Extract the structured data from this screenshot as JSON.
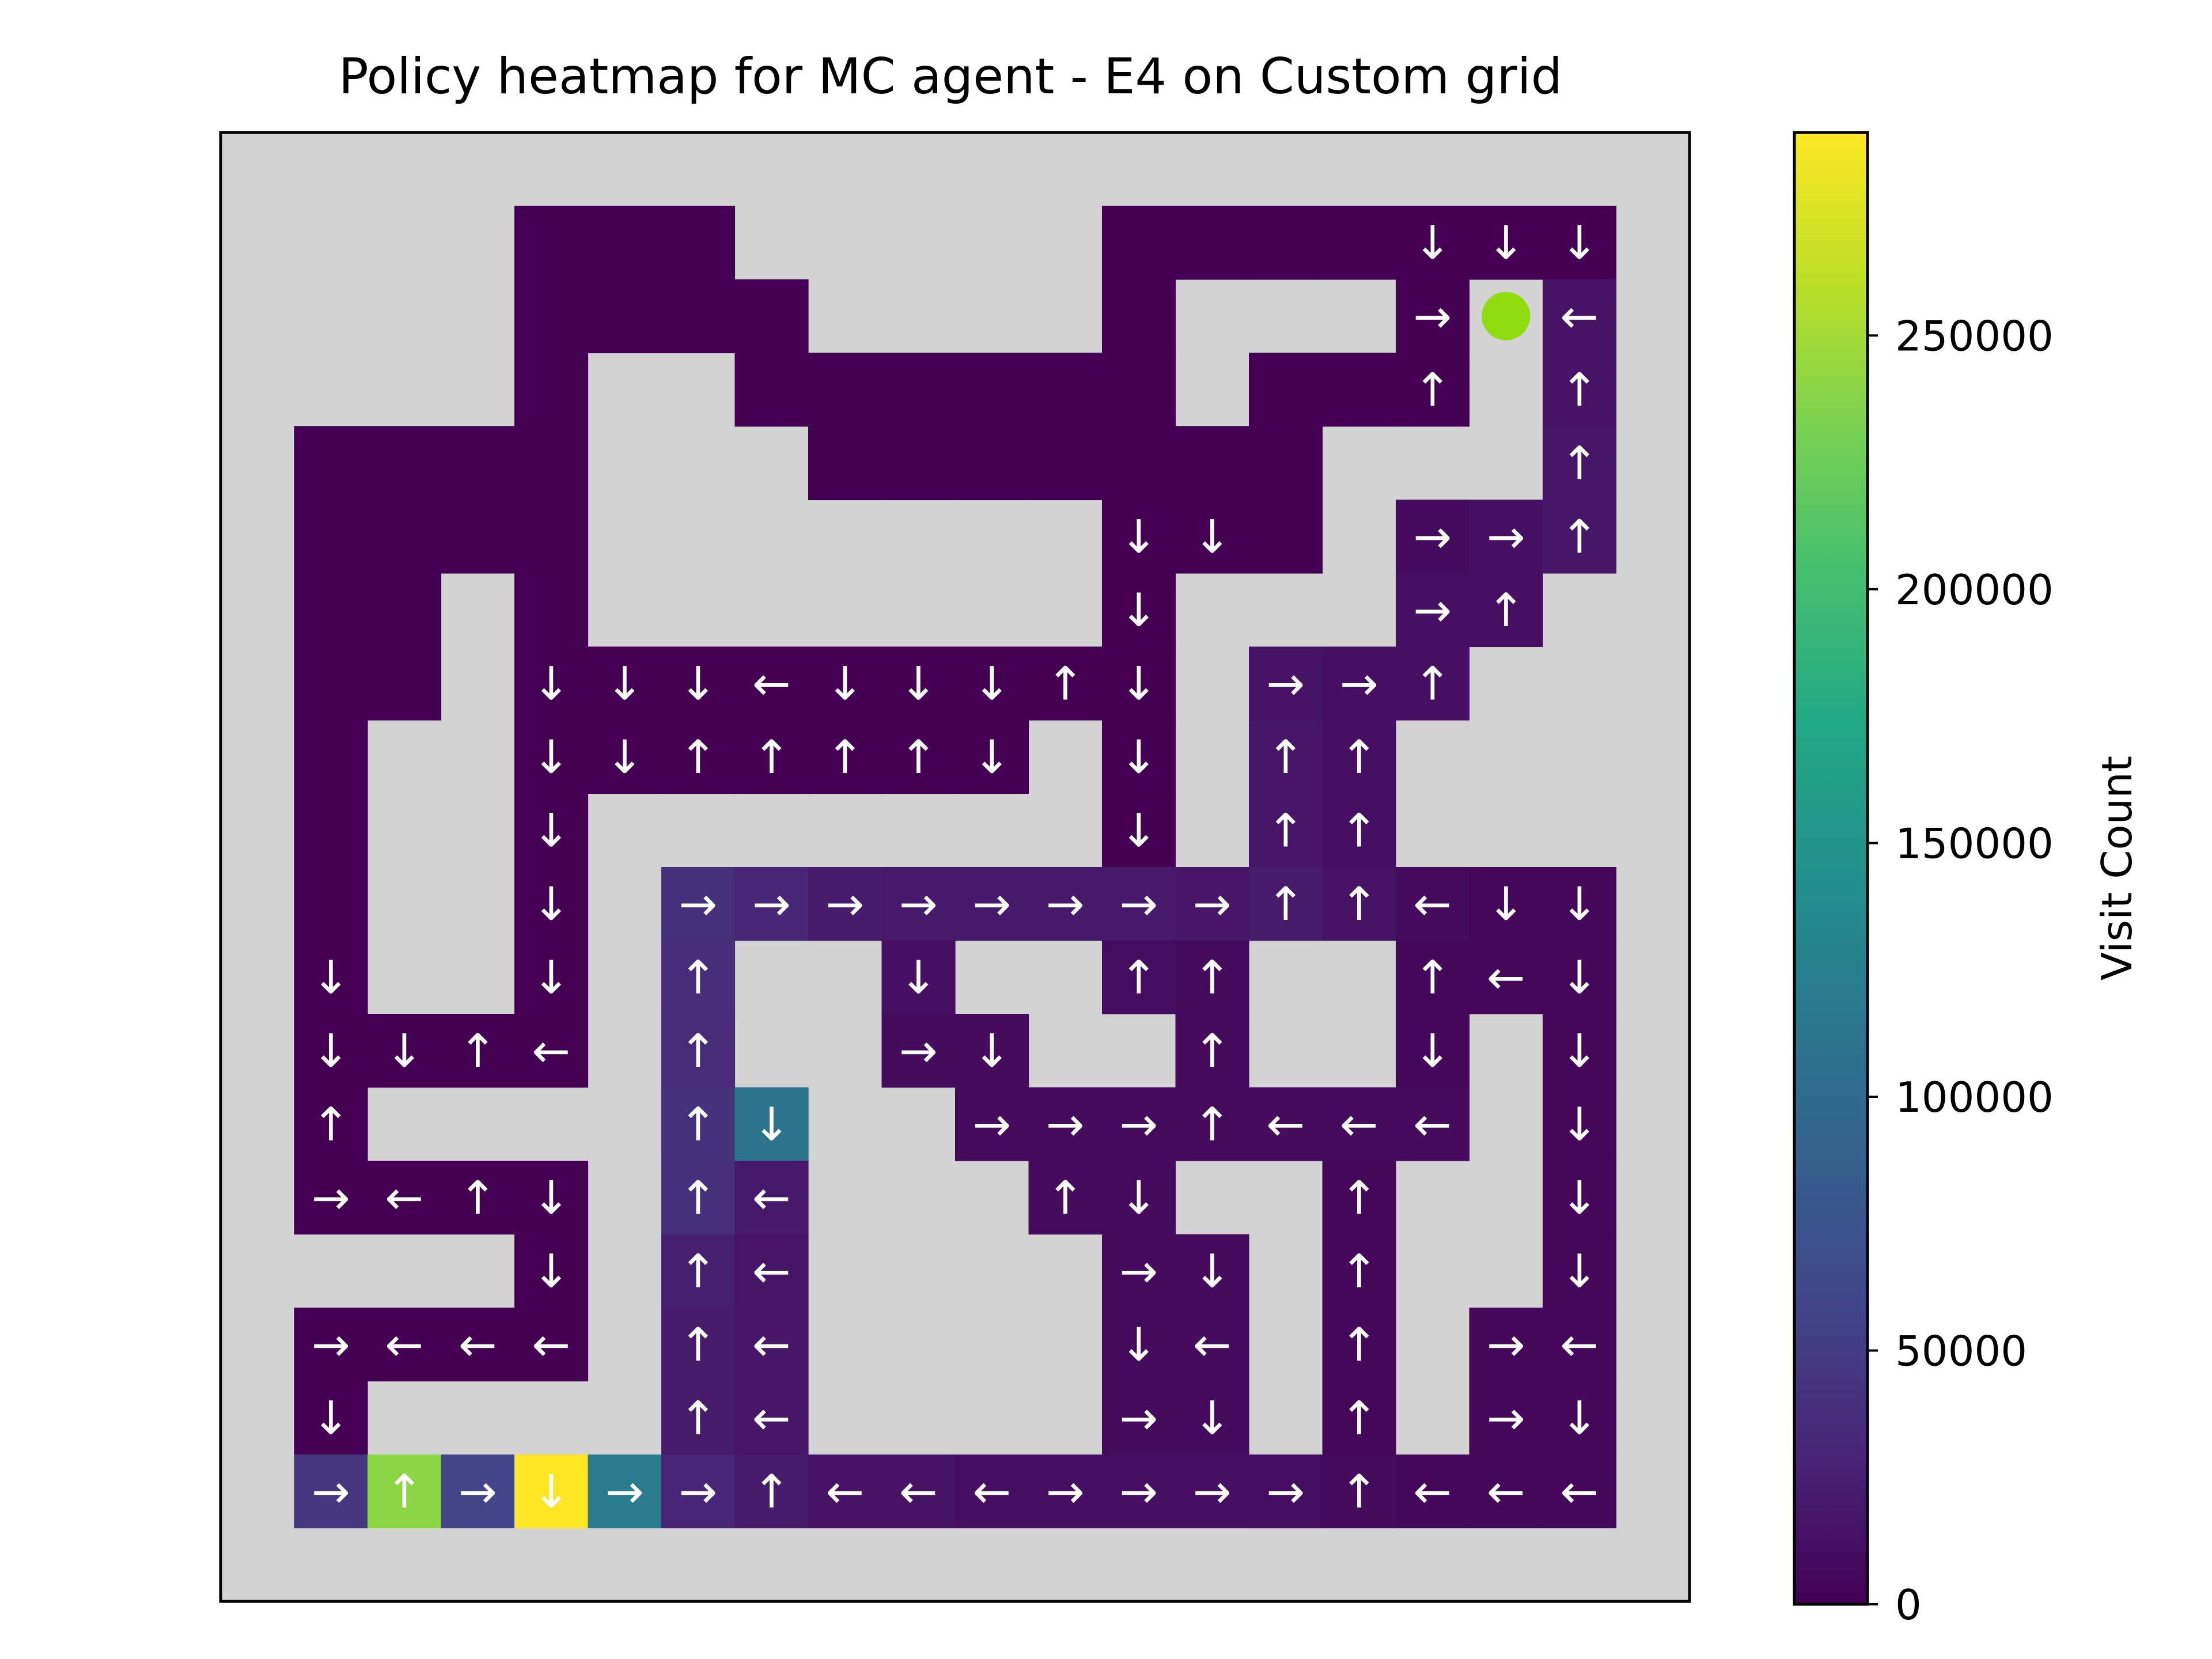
{
  "chart_data": {
    "type": "heatmap",
    "title": "Policy heatmap for MC agent - E4 on Custom grid",
    "colorbar": {
      "label": "Visit Count",
      "min": 0,
      "max": 290000,
      "ticks": [
        0,
        50000,
        100000,
        150000,
        200000,
        250000
      ],
      "tick_labels": [
        "0",
        "50000",
        "100000",
        "150000",
        "200000",
        "250000"
      ],
      "colormap": "viridis"
    },
    "grid": {
      "rows": 20,
      "cols": 20,
      "wall_color": "#d3d3d3",
      "arrow_color": "#ffffff",
      "goal_color": "#8fdc0f",
      "goal_cell": [
        2,
        17
      ]
    },
    "cells": [
      [
        1,
        4,
        0,
        ""
      ],
      [
        1,
        5,
        0,
        ""
      ],
      [
        1,
        6,
        0,
        ""
      ],
      [
        1,
        12,
        0,
        ""
      ],
      [
        1,
        13,
        0,
        ""
      ],
      [
        1,
        14,
        0,
        ""
      ],
      [
        1,
        15,
        0,
        ""
      ],
      [
        1,
        16,
        0,
        "↓"
      ],
      [
        1,
        17,
        0,
        "↓"
      ],
      [
        1,
        18,
        0,
        "↓"
      ],
      [
        2,
        4,
        0,
        ""
      ],
      [
        2,
        5,
        0,
        ""
      ],
      [
        2,
        6,
        0,
        ""
      ],
      [
        2,
        7,
        0,
        ""
      ],
      [
        2,
        12,
        0,
        ""
      ],
      [
        2,
        16,
        0,
        "→"
      ],
      [
        2,
        18,
        15000,
        "←"
      ],
      [
        3,
        4,
        0,
        ""
      ],
      [
        3,
        7,
        0,
        ""
      ],
      [
        3,
        8,
        0,
        ""
      ],
      [
        3,
        9,
        0,
        ""
      ],
      [
        3,
        10,
        0,
        ""
      ],
      [
        3,
        11,
        0,
        ""
      ],
      [
        3,
        12,
        0,
        ""
      ],
      [
        3,
        14,
        0,
        ""
      ],
      [
        3,
        15,
        0,
        ""
      ],
      [
        3,
        16,
        0,
        "↑"
      ],
      [
        3,
        18,
        15000,
        "↑"
      ],
      [
        4,
        1,
        0,
        ""
      ],
      [
        4,
        2,
        0,
        ""
      ],
      [
        4,
        3,
        0,
        ""
      ],
      [
        4,
        4,
        0,
        ""
      ],
      [
        4,
        8,
        0,
        ""
      ],
      [
        4,
        9,
        0,
        ""
      ],
      [
        4,
        10,
        0,
        ""
      ],
      [
        4,
        11,
        0,
        ""
      ],
      [
        4,
        12,
        0,
        ""
      ],
      [
        4,
        13,
        0,
        ""
      ],
      [
        4,
        14,
        0,
        ""
      ],
      [
        4,
        18,
        18000,
        "↑"
      ],
      [
        5,
        1,
        0,
        ""
      ],
      [
        5,
        2,
        0,
        ""
      ],
      [
        5,
        3,
        0,
        ""
      ],
      [
        5,
        4,
        0,
        ""
      ],
      [
        5,
        12,
        0,
        "↓"
      ],
      [
        5,
        13,
        0,
        "↓"
      ],
      [
        5,
        14,
        0,
        ""
      ],
      [
        5,
        16,
        8000,
        "→"
      ],
      [
        5,
        17,
        12000,
        "→"
      ],
      [
        5,
        18,
        18000,
        "↑"
      ],
      [
        6,
        1,
        0,
        ""
      ],
      [
        6,
        2,
        0,
        ""
      ],
      [
        6,
        4,
        0,
        ""
      ],
      [
        6,
        12,
        0,
        "↓"
      ],
      [
        6,
        16,
        12000,
        "→"
      ],
      [
        6,
        17,
        12000,
        "↑"
      ],
      [
        7,
        1,
        0,
        ""
      ],
      [
        7,
        2,
        0,
        ""
      ],
      [
        7,
        4,
        0,
        "↓"
      ],
      [
        7,
        5,
        0,
        "↓"
      ],
      [
        7,
        6,
        0,
        "↓"
      ],
      [
        7,
        7,
        0,
        "←"
      ],
      [
        7,
        8,
        0,
        "↓"
      ],
      [
        7,
        9,
        0,
        "↓"
      ],
      [
        7,
        10,
        0,
        "↓"
      ],
      [
        7,
        11,
        0,
        "↑"
      ],
      [
        7,
        12,
        0,
        "↓"
      ],
      [
        7,
        14,
        15000,
        "→"
      ],
      [
        7,
        15,
        12000,
        "→"
      ],
      [
        7,
        16,
        12000,
        "↑"
      ],
      [
        8,
        1,
        0,
        ""
      ],
      [
        8,
        4,
        0,
        "↓"
      ],
      [
        8,
        5,
        0,
        "↓"
      ],
      [
        8,
        6,
        0,
        "↑"
      ],
      [
        8,
        7,
        0,
        "↑"
      ],
      [
        8,
        8,
        0,
        "↑"
      ],
      [
        8,
        9,
        0,
        "↑"
      ],
      [
        8,
        10,
        0,
        "↓"
      ],
      [
        8,
        12,
        0,
        "↓"
      ],
      [
        8,
        14,
        18000,
        "↑"
      ],
      [
        8,
        15,
        12000,
        "↑"
      ],
      [
        9,
        1,
        0,
        ""
      ],
      [
        9,
        4,
        0,
        "↓"
      ],
      [
        9,
        12,
        0,
        "↓"
      ],
      [
        9,
        14,
        18000,
        "↑"
      ],
      [
        9,
        15,
        12000,
        "↑"
      ],
      [
        10,
        1,
        0,
        ""
      ],
      [
        10,
        4,
        0,
        "↓"
      ],
      [
        10,
        6,
        40000,
        "→"
      ],
      [
        10,
        7,
        30000,
        "→"
      ],
      [
        10,
        8,
        22000,
        "→"
      ],
      [
        10,
        9,
        20000,
        "→"
      ],
      [
        10,
        10,
        20000,
        "→"
      ],
      [
        10,
        11,
        20000,
        "→"
      ],
      [
        10,
        12,
        20000,
        "→"
      ],
      [
        10,
        13,
        18000,
        "→"
      ],
      [
        10,
        14,
        22000,
        "↑"
      ],
      [
        10,
        15,
        15000,
        "↑"
      ],
      [
        10,
        16,
        8000,
        "←"
      ],
      [
        10,
        17,
        5000,
        "↓"
      ],
      [
        10,
        18,
        5000,
        "↓"
      ],
      [
        11,
        1,
        0,
        "↓"
      ],
      [
        11,
        4,
        0,
        "↓"
      ],
      [
        11,
        6,
        38000,
        "↑"
      ],
      [
        11,
        9,
        12000,
        "↓"
      ],
      [
        11,
        12,
        10000,
        "↑"
      ],
      [
        11,
        13,
        8000,
        "↑"
      ],
      [
        11,
        16,
        5000,
        "↑"
      ],
      [
        11,
        17,
        5000,
        "←"
      ],
      [
        11,
        18,
        5000,
        "↓"
      ],
      [
        12,
        1,
        0,
        "↓"
      ],
      [
        12,
        2,
        0,
        "↓"
      ],
      [
        12,
        3,
        0,
        "↑"
      ],
      [
        12,
        4,
        0,
        "←"
      ],
      [
        12,
        6,
        35000,
        "↑"
      ],
      [
        12,
        9,
        8000,
        "→"
      ],
      [
        12,
        10,
        8000,
        "↓"
      ],
      [
        12,
        13,
        8000,
        "↑"
      ],
      [
        12,
        16,
        5000,
        "↓"
      ],
      [
        12,
        18,
        5000,
        "↓"
      ],
      [
        13,
        1,
        0,
        "↑"
      ],
      [
        13,
        6,
        42000,
        "↑"
      ],
      [
        13,
        7,
        110000,
        "↓"
      ],
      [
        13,
        10,
        8000,
        "→"
      ],
      [
        13,
        11,
        8000,
        "→"
      ],
      [
        13,
        12,
        8000,
        "→"
      ],
      [
        13,
        13,
        8000,
        "↑"
      ],
      [
        13,
        14,
        8000,
        "←"
      ],
      [
        13,
        15,
        8000,
        "←"
      ],
      [
        13,
        16,
        8000,
        "←"
      ],
      [
        13,
        18,
        5000,
        "↓"
      ],
      [
        14,
        1,
        0,
        "→"
      ],
      [
        14,
        2,
        0,
        "←"
      ],
      [
        14,
        3,
        0,
        "↑"
      ],
      [
        14,
        4,
        0,
        "↓"
      ],
      [
        14,
        6,
        40000,
        "↑"
      ],
      [
        14,
        7,
        20000,
        "←"
      ],
      [
        14,
        11,
        8000,
        "↑"
      ],
      [
        14,
        12,
        8000,
        "↓"
      ],
      [
        14,
        15,
        5000,
        "↑"
      ],
      [
        14,
        18,
        5000,
        "↓"
      ],
      [
        15,
        4,
        0,
        "↓"
      ],
      [
        15,
        6,
        25000,
        "↑"
      ],
      [
        15,
        7,
        18000,
        "←"
      ],
      [
        15,
        12,
        8000,
        "→"
      ],
      [
        15,
        13,
        8000,
        "↓"
      ],
      [
        15,
        15,
        5000,
        "↑"
      ],
      [
        15,
        18,
        5000,
        "↓"
      ],
      [
        16,
        1,
        0,
        "→"
      ],
      [
        16,
        2,
        0,
        "←"
      ],
      [
        16,
        3,
        0,
        "←"
      ],
      [
        16,
        4,
        0,
        "←"
      ],
      [
        16,
        6,
        22000,
        "↑"
      ],
      [
        16,
        7,
        18000,
        "←"
      ],
      [
        16,
        12,
        8000,
        "↓"
      ],
      [
        16,
        13,
        8000,
        "←"
      ],
      [
        16,
        15,
        5000,
        "↑"
      ],
      [
        16,
        17,
        5000,
        "→"
      ],
      [
        16,
        18,
        5000,
        "←"
      ],
      [
        17,
        1,
        0,
        "↓"
      ],
      [
        17,
        6,
        22000,
        "↑"
      ],
      [
        17,
        7,
        18000,
        "←"
      ],
      [
        17,
        12,
        8000,
        "→"
      ],
      [
        17,
        13,
        8000,
        "↓"
      ],
      [
        17,
        15,
        5000,
        "↑"
      ],
      [
        17,
        17,
        5000,
        "→"
      ],
      [
        17,
        18,
        5000,
        "↓"
      ],
      [
        18,
        1,
        45000,
        "→"
      ],
      [
        18,
        2,
        240000,
        "↑"
      ],
      [
        18,
        3,
        60000,
        "→"
      ],
      [
        18,
        4,
        290000,
        "↓"
      ],
      [
        18,
        5,
        120000,
        "→"
      ],
      [
        18,
        6,
        30000,
        "→"
      ],
      [
        18,
        7,
        22000,
        "↑"
      ],
      [
        18,
        8,
        15000,
        "←"
      ],
      [
        18,
        9,
        15000,
        "←"
      ],
      [
        18,
        10,
        12000,
        "←"
      ],
      [
        18,
        11,
        12000,
        "→"
      ],
      [
        18,
        12,
        12000,
        "→"
      ],
      [
        18,
        13,
        12000,
        "→"
      ],
      [
        18,
        14,
        10000,
        "→"
      ],
      [
        18,
        15,
        8000,
        "↑"
      ],
      [
        18,
        16,
        5000,
        "←"
      ],
      [
        18,
        17,
        5000,
        "←"
      ],
      [
        18,
        18,
        5000,
        "←"
      ]
    ]
  }
}
